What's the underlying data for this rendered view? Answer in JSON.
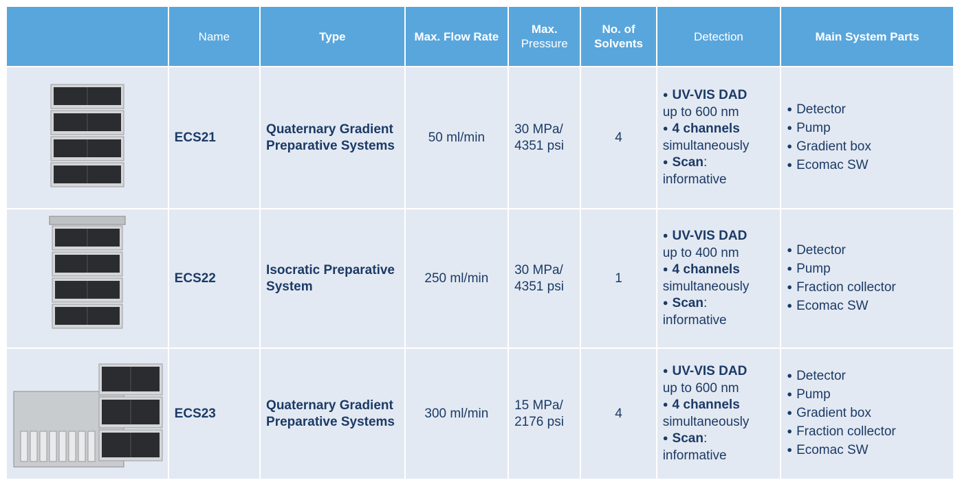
{
  "header": {
    "cells": [
      [
        "Name"
      ],
      [
        "Type"
      ],
      [
        "Max. Flow Rate"
      ],
      [
        "Max.",
        "Pressure"
      ],
      [
        "No. of Solvents"
      ],
      [
        "Detection"
      ],
      [
        "Main System Parts"
      ]
    ]
  },
  "table": {
    "rows": [
      {
        "name": "ECS21",
        "type": "Quaternary Gradient Preparative Systems",
        "flow": "50 ml/min",
        "pressure": [
          "30 MPa/",
          "4351 psi"
        ],
        "solvents": 4,
        "detection": [
          {
            "bold": "UV-VIS DAD",
            "text": "up to 600 nm"
          },
          {
            "bold": "4 channels",
            "text": "simultaneously"
          },
          {
            "bold": "Scan",
            "text": ": informative"
          }
        ],
        "parts": [
          "Detector",
          "Pump",
          "Gradient box",
          "Ecomac SW"
        ]
      },
      {
        "name": "ECS22",
        "type": "Isocratic Preparative System",
        "flow": "250 ml/min",
        "pressure": [
          "30 MPa/",
          "4351 psi"
        ],
        "solvents": 1,
        "detection": [
          {
            "bold": "UV-VIS DAD",
            "text": "up to 400 nm"
          },
          {
            "bold": "4 channels",
            "text": "simultaneously"
          },
          {
            "bold": "Scan",
            "text": ": informative"
          }
        ],
        "parts": [
          "Detector",
          "Pump",
          "Fraction collector",
          "Ecomac SW"
        ]
      },
      {
        "name": "ECS23",
        "type": "Quaternary Gradient Preparative Systems",
        "flow": "300 ml/min",
        "pressure": [
          "15 MPa/",
          "2176 psi"
        ],
        "solvents": 4,
        "detection": [
          {
            "bold": "UV-VIS DAD",
            "text": "up to 600 nm"
          },
          {
            "bold": "4 channels",
            "text": "simultaneously"
          },
          {
            "bold": "Scan",
            "text": ": informative"
          }
        ],
        "parts": [
          "Detector",
          "Pump",
          "Gradient box",
          "Fraction collector",
          "Ecomac SW"
        ]
      }
    ]
  }
}
